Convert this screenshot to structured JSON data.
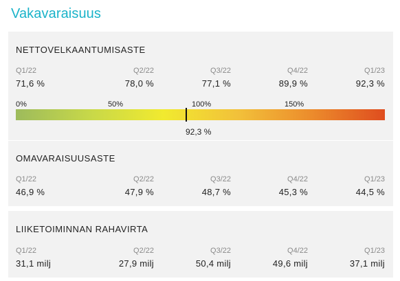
{
  "title": "Vakavaraisuus",
  "net_debt": {
    "title": "NETTOVELKAANTUMISASTE",
    "quarters": [
      {
        "label": "Q1/22",
        "value": "71,6 %"
      },
      {
        "label": "Q2/22",
        "value": "78,0 %"
      },
      {
        "label": "Q3/22",
        "value": "77,1 %"
      },
      {
        "label": "Q4/22",
        "value": "89,9 %"
      },
      {
        "label": "Q1/23",
        "value": "92,3 %"
      }
    ],
    "scale_labels": [
      "0%",
      "50%",
      "100%",
      "150%"
    ],
    "scale_max_percent": 200,
    "current_percent": 92.3,
    "marker_label": "92,3 %",
    "gradient_colors": [
      "#9dbb5c",
      "#c7d849",
      "#f1ea2f",
      "#f2c13a",
      "#ec8c2c",
      "#df4d1f"
    ]
  },
  "equity_ratio": {
    "title": "OMAVARAISUUSASTE",
    "quarters": [
      {
        "label": "Q1/22",
        "value": "46,9 %"
      },
      {
        "label": "Q2/22",
        "value": "47,9 %"
      },
      {
        "label": "Q3/22",
        "value": "48,7 %"
      },
      {
        "label": "Q4/22",
        "value": "45,3 %"
      },
      {
        "label": "Q1/23",
        "value": "44,5 %"
      }
    ]
  },
  "cash_flow": {
    "title": "LIIKETOIMINNAN RAHAVIRTA",
    "quarters": [
      {
        "label": "Q1/22",
        "value": "31,1 milj"
      },
      {
        "label": "Q2/22",
        "value": "27,9 milj"
      },
      {
        "label": "Q3/22",
        "value": "50,4 milj"
      },
      {
        "label": "Q4/22",
        "value": "49,6 milj"
      },
      {
        "label": "Q1/23",
        "value": "37,1 milj"
      }
    ]
  },
  "colors": {
    "title": "#1ab3c9",
    "card_bg": "#f2f2f2",
    "label_gray": "#8a8a8a"
  }
}
